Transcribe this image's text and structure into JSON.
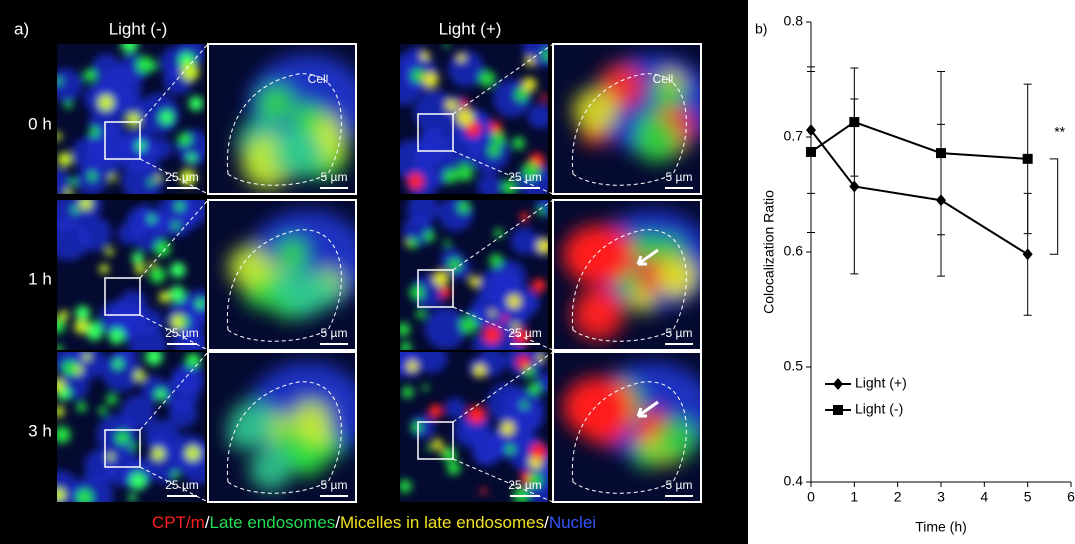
{
  "panel_a": {
    "label": "a)",
    "columns": [
      "Light (-)",
      "Light (+)"
    ],
    "rows": [
      "0 h",
      "1 h",
      "3 h"
    ],
    "cell_label": "Cell",
    "scale_bars": [
      "25 µm",
      "5 µm"
    ],
    "caption": [
      "CPT/m",
      "/",
      "Late endosomes",
      "/",
      "Micelles in late endosomes",
      "/",
      "Nuclei"
    ]
  },
  "chart_data": {
    "type": "line",
    "label": "b)",
    "xlabel": "Time (h)",
    "ylabel": "Colocalization Ratio",
    "x": [
      0,
      1,
      3,
      5
    ],
    "xlim": [
      0,
      6
    ],
    "xticks": [
      0,
      1,
      2,
      3,
      4,
      5,
      6
    ],
    "ylim": [
      0.4,
      0.8
    ],
    "yticks": [
      0.4,
      0.5,
      0.6,
      0.7,
      0.8
    ],
    "series": [
      {
        "name": "Light (+)",
        "marker": "diamond",
        "color": "#000000",
        "values": [
          0.706,
          0.657,
          0.645,
          0.598
        ],
        "errors": [
          0.055,
          0.076,
          0.066,
          0.053
        ]
      },
      {
        "name": "Light (-)",
        "marker": "square",
        "color": "#000000",
        "values": [
          0.687,
          0.713,
          0.686,
          0.681
        ],
        "errors": [
          0.07,
          0.047,
          0.071,
          0.065
        ]
      }
    ],
    "annotation": "**",
    "legend": "lower left"
  }
}
